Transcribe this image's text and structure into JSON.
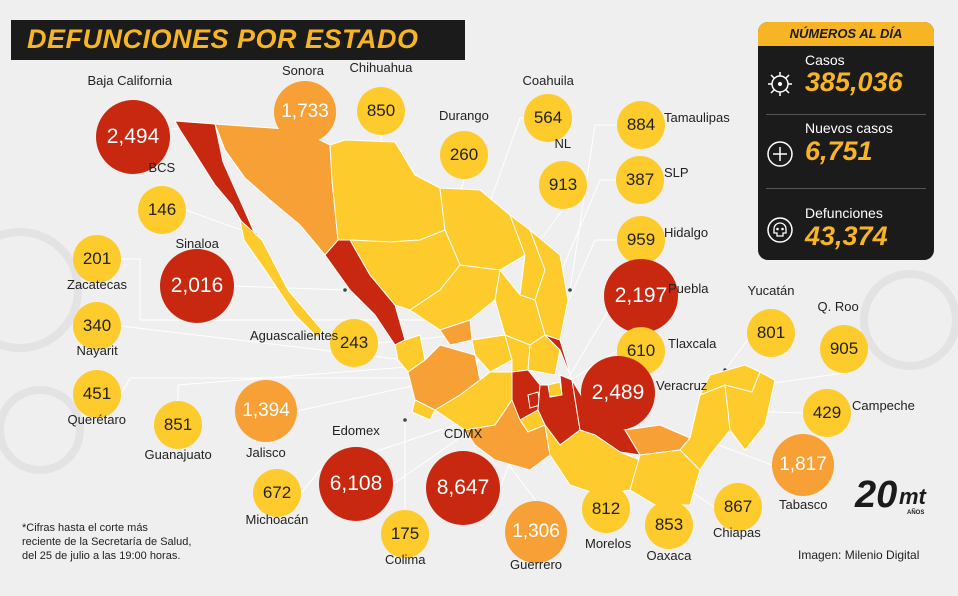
{
  "title": "DEFUNCIONES POR ESTADO",
  "panel": {
    "header": "NÚMEROS AL DÍA",
    "stats": [
      {
        "label": "Casos",
        "value": "385,036",
        "icon": "virus-icon"
      },
      {
        "label": "Nuevos casos",
        "value": "6,751",
        "icon": "plus-icon"
      },
      {
        "label": "Defunciones",
        "value": "43,374",
        "icon": "skull-icon"
      }
    ]
  },
  "states": [
    {
      "name": "Baja California",
      "value": "2,494",
      "level": "high"
    },
    {
      "name": "Sonora",
      "value": "1,733",
      "level": "mid"
    },
    {
      "name": "Chihuahua",
      "value": "850",
      "level": "low"
    },
    {
      "name": "Durango",
      "value": "260",
      "level": "low"
    },
    {
      "name": "Coahuila",
      "value": "564",
      "level": "low"
    },
    {
      "name": "NL",
      "value": "913",
      "level": "low"
    },
    {
      "name": "Tamaulipas",
      "value": "884",
      "level": "low"
    },
    {
      "name": "SLP",
      "value": "387",
      "level": "low"
    },
    {
      "name": "Hidalgo",
      "value": "959",
      "level": "low"
    },
    {
      "name": "BCS",
      "value": "146",
      "level": "low"
    },
    {
      "name": "Sinaloa",
      "value": "2,016",
      "level": "high"
    },
    {
      "name": "Zacatecas",
      "value": "201",
      "level": "low"
    },
    {
      "name": "Nayarit",
      "value": "340",
      "level": "low"
    },
    {
      "name": "Aguascalientes",
      "value": "243",
      "level": "low"
    },
    {
      "name": "Querétaro",
      "value": "451",
      "level": "low"
    },
    {
      "name": "Guanajuato",
      "value": "851",
      "level": "low"
    },
    {
      "name": "Jalisco",
      "value": "1,394",
      "level": "mid"
    },
    {
      "name": "Michoacán",
      "value": "672",
      "level": "low"
    },
    {
      "name": "Edomex",
      "value": "6,108",
      "level": "high"
    },
    {
      "name": "Colima",
      "value": "175",
      "level": "low"
    },
    {
      "name": "CDMX",
      "value": "8,647",
      "level": "high"
    },
    {
      "name": "Guerrero",
      "value": "1,306",
      "level": "mid"
    },
    {
      "name": "Morelos",
      "value": "812",
      "level": "low"
    },
    {
      "name": "Oaxaca",
      "value": "853",
      "level": "low"
    },
    {
      "name": "Chiapas",
      "value": "867",
      "level": "low"
    },
    {
      "name": "Puebla",
      "value": "2,197",
      "level": "high"
    },
    {
      "name": "Tlaxcala",
      "value": "610",
      "level": "low"
    },
    {
      "name": "Veracruz",
      "value": "2,489",
      "level": "high"
    },
    {
      "name": "Yucatán",
      "value": "801",
      "level": "low"
    },
    {
      "name": "Q. Roo",
      "value": "905",
      "level": "low"
    },
    {
      "name": "Campeche",
      "value": "429",
      "level": "low"
    },
    {
      "name": "Tabasco",
      "value": "1,817",
      "level": "mid"
    }
  ],
  "footnote": [
    "*Cifras hasta el corte más",
    "reciente de la Secretaría de Salud,",
    "del 25 de julio a las 19:00 horas."
  ],
  "credit": "Imagen: Milenio Digital",
  "logo": {
    "number": "20",
    "brand": "mt",
    "sub": "AÑOS"
  },
  "colors": {
    "low": "#fdcb2b",
    "mid": "#f7a035",
    "high": "#c8280f",
    "dark": "#1b1b1b",
    "accent": "#f7b526"
  }
}
